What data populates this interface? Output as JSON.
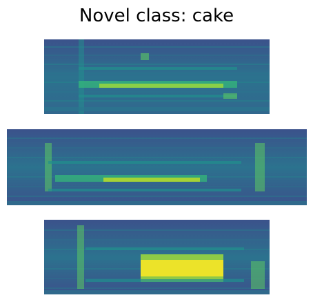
{
  "figure": {
    "title": "Novel class: cake",
    "colormap": {
      "name": "viridis",
      "low": "#440154",
      "mid_low": "#3b528b",
      "mid": "#21908d",
      "mid_high": "#5dc863",
      "high": "#fde725"
    }
  },
  "spectrograms": [
    {
      "id": "spec1",
      "description_key": "top"
    },
    {
      "id": "spec2",
      "description_key": "middle"
    },
    {
      "id": "spec3",
      "description_key": "bottom"
    }
  ]
}
